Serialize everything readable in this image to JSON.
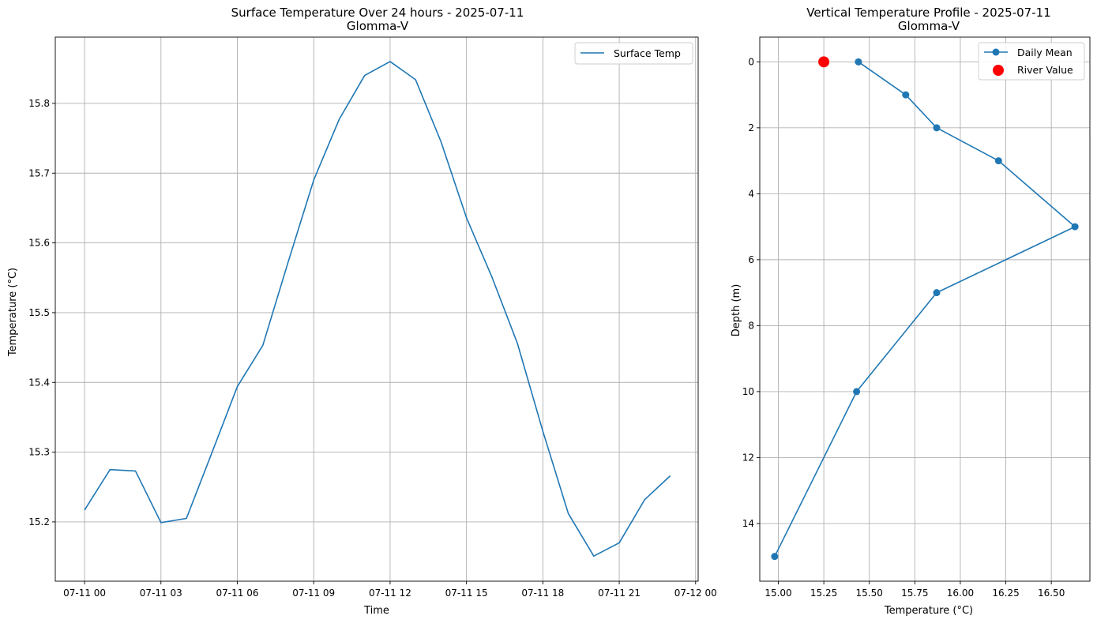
{
  "chart_data": [
    {
      "type": "line",
      "title": "Surface Temperature Over 24 hours - 2025-07-11",
      "subtitle": "Glomma-V",
      "xlabel": "Time",
      "ylabel": "Temperature (°C)",
      "x": [
        "07-11 00:00",
        "07-11 01:00",
        "07-11 02:00",
        "07-11 03:00",
        "07-11 04:00",
        "07-11 05:00",
        "07-11 06:00",
        "07-11 07:00",
        "07-11 08:00",
        "07-11 09:00",
        "07-11 10:00",
        "07-11 11:00",
        "07-11 12:00",
        "07-11 13:00",
        "07-11 14:00",
        "07-11 15:00",
        "07-11 16:00",
        "07-11 17:00",
        "07-11 18:00",
        "07-11 19:00",
        "07-11 20:00",
        "07-11 21:00",
        "07-11 22:00",
        "07-11 23:00"
      ],
      "series": [
        {
          "name": "Surface Temp",
          "values": [
            15.217,
            15.275,
            15.273,
            15.199,
            15.205,
            15.299,
            15.394,
            15.453,
            15.573,
            15.69,
            15.777,
            15.84,
            15.86,
            15.834,
            15.745,
            15.636,
            15.551,
            15.456,
            15.33,
            15.212,
            15.151,
            15.17,
            15.232,
            15.266
          ]
        }
      ],
      "xticks": [
        "07-11 00",
        "07-11 03",
        "07-11 06",
        "07-11 09",
        "07-11 12",
        "07-11 15",
        "07-11 18",
        "07-11 21",
        "07-12 00"
      ],
      "yticks": [
        "15.2",
        "15.3",
        "15.4",
        "15.5",
        "15.6",
        "15.7",
        "15.8"
      ],
      "xlim": [
        -1.15,
        24.1
      ],
      "ylim": [
        15.115,
        15.895
      ],
      "grid": true,
      "legend": "top-right",
      "color": "#1f77b4"
    },
    {
      "type": "line",
      "title": "Vertical Temperature Profile - 2025-07-11",
      "subtitle": "Glomma-V",
      "xlabel": "Temperature (°C)",
      "ylabel": "Depth (m)",
      "series": [
        {
          "name": "Daily Mean",
          "temperature": [
            15.44,
            15.7,
            15.87,
            16.21,
            16.63,
            15.87,
            15.43,
            14.98
          ],
          "depth": [
            0,
            1,
            2,
            3,
            5,
            7,
            10,
            15
          ],
          "color": "#1f77b4"
        },
        {
          "name": "River Value",
          "temperature": [
            15.25
          ],
          "depth": [
            0
          ],
          "color": "#ff0000",
          "marker": "scatter"
        }
      ],
      "xticks": [
        "15.00",
        "15.25",
        "15.50",
        "15.75",
        "16.00",
        "16.25",
        "16.50"
      ],
      "yticks": [
        "0",
        "2",
        "4",
        "6",
        "8",
        "10",
        "12",
        "14"
      ],
      "xlim": [
        14.898,
        16.712
      ],
      "ylim": [
        15.75,
        -0.75
      ],
      "y_inverted": true,
      "grid": true,
      "legend": "top-right"
    }
  ]
}
